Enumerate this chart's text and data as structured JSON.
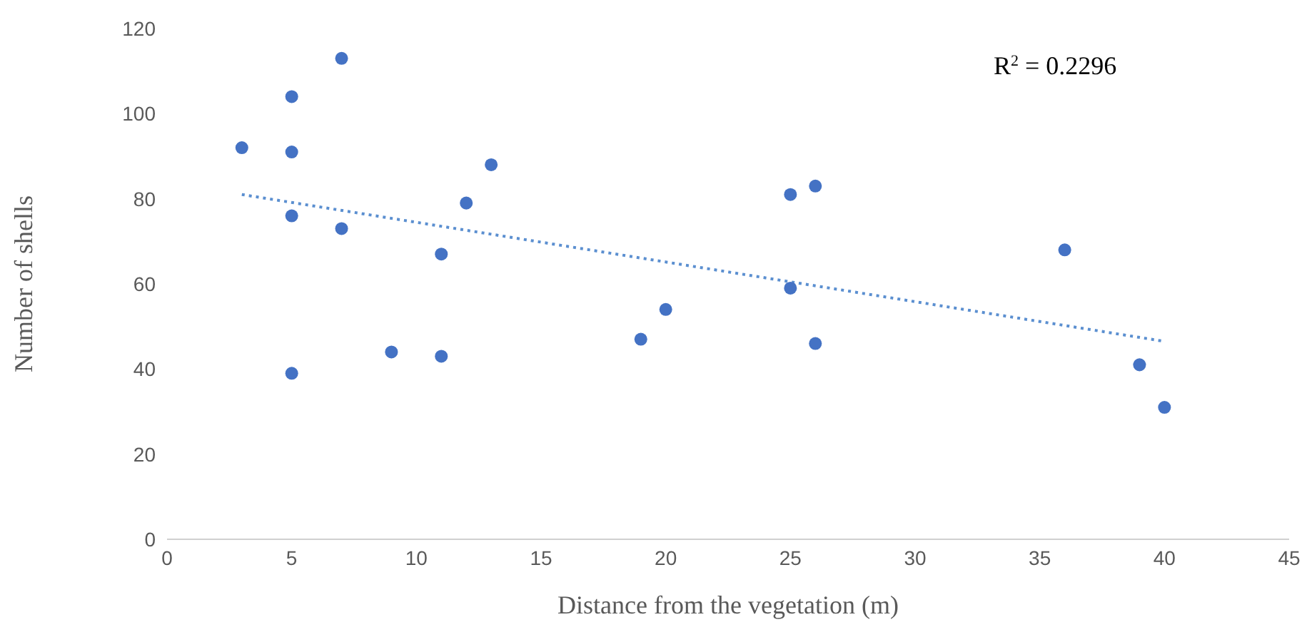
{
  "chart_data": {
    "type": "scatter",
    "xlabel": "Distance from the vegetation (m)",
    "ylabel": "Number of shells",
    "annotations": [
      "R$^{2}$ = 0.2296"
    ],
    "xlim": [
      0,
      45
    ],
    "xticks": [
      0,
      5,
      10,
      15,
      20,
      25,
      30,
      35,
      40,
      45
    ],
    "ylim": [
      0,
      120
    ],
    "yticks": [
      0,
      20,
      40,
      60,
      80,
      100,
      120
    ],
    "series": [
      {
        "type": "scatter",
        "color": "#4472c4",
        "marker": "circle",
        "x": [
          3,
          5,
          5,
          5,
          5,
          7,
          7,
          9,
          11,
          11,
          12,
          13,
          19,
          20,
          25,
          25,
          26,
          26,
          36,
          39,
          40
        ],
        "values": [
          92,
          104,
          91,
          76,
          39,
          113,
          73,
          44,
          67,
          43,
          79,
          88,
          47,
          54,
          81,
          59,
          83,
          46,
          68,
          41,
          31
        ]
      },
      {
        "type": "line",
        "color": "#5b8fd0",
        "marker": "none",
        "line_style": "dotted",
        "x": [
          3,
          40
        ],
        "values": [
          81,
          46.5
        ]
      }
    ]
  }
}
